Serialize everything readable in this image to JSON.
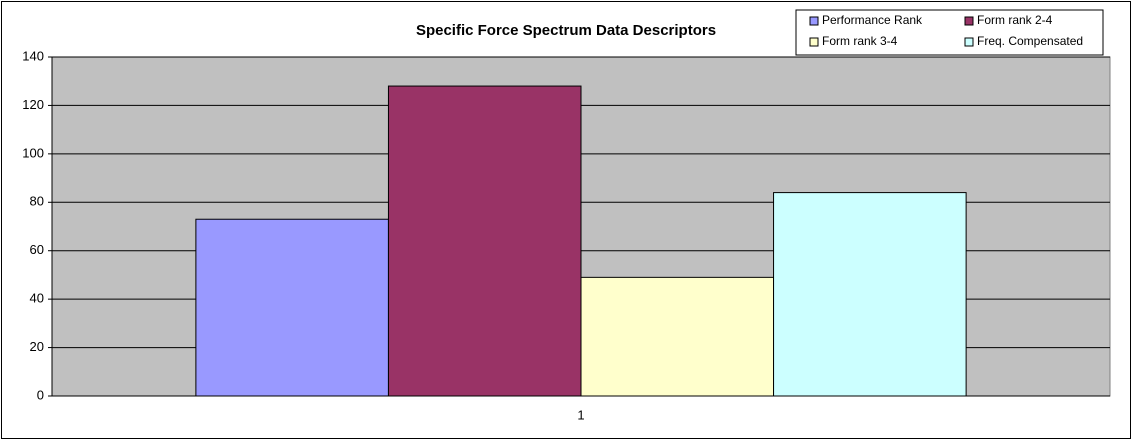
{
  "chart_data": {
    "type": "bar",
    "title": "Specific Force Spectrum Data Descriptors",
    "categories": [
      "1"
    ],
    "series": [
      {
        "name": "Performance Rank",
        "color": "#9999ff",
        "values": [
          73
        ]
      },
      {
        "name": "Form rank 2-4",
        "color": "#993366",
        "values": [
          128
        ]
      },
      {
        "name": "Form rank 3-4",
        "color": "#ffffcc",
        "values": [
          49
        ]
      },
      {
        "name": "Freq. Compensated",
        "color": "#ccffff",
        "values": [
          84
        ]
      }
    ],
    "ylim": [
      0,
      140
    ],
    "yticks": [
      0,
      20,
      40,
      60,
      80,
      100,
      120,
      140
    ],
    "grid": true,
    "legend": "top-right",
    "plot_background": "#c0c0c0"
  }
}
